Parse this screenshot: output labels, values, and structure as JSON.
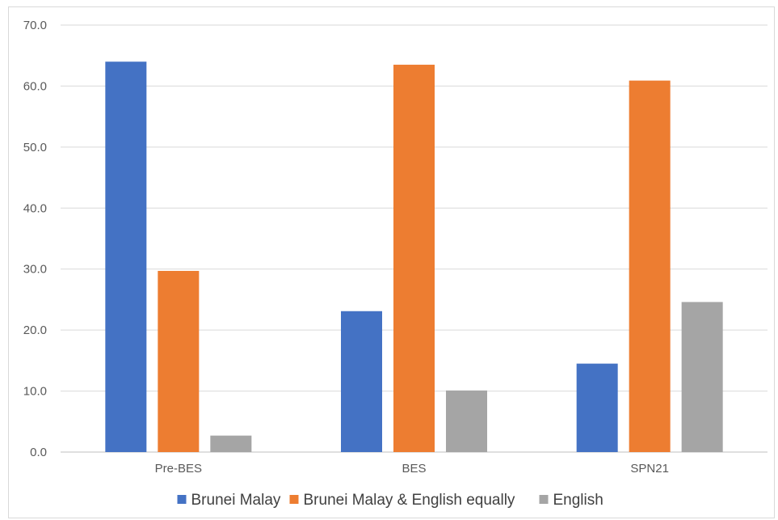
{
  "chart_data": {
    "type": "bar",
    "title": "",
    "xlabel": "",
    "ylabel": "",
    "categories": [
      "Pre-BES",
      "BES",
      "SPN21"
    ],
    "series": [
      {
        "name": "Brunei Malay",
        "color": "#4472c4",
        "values": [
          64.0,
          23.1,
          14.5
        ]
      },
      {
        "name": "Brunei Malay & English equally",
        "color": "#ed7d31",
        "values": [
          29.7,
          63.5,
          60.9
        ]
      },
      {
        "name": "English",
        "color": "#a5a5a5",
        "values": [
          2.7,
          10.1,
          24.6
        ]
      }
    ],
    "ylim": [
      0,
      70
    ],
    "yticks": [
      "0.0",
      "10.0",
      "20.0",
      "30.0",
      "40.0",
      "50.0",
      "60.0",
      "70.0"
    ],
    "grid": true,
    "legend_position": "bottom"
  }
}
